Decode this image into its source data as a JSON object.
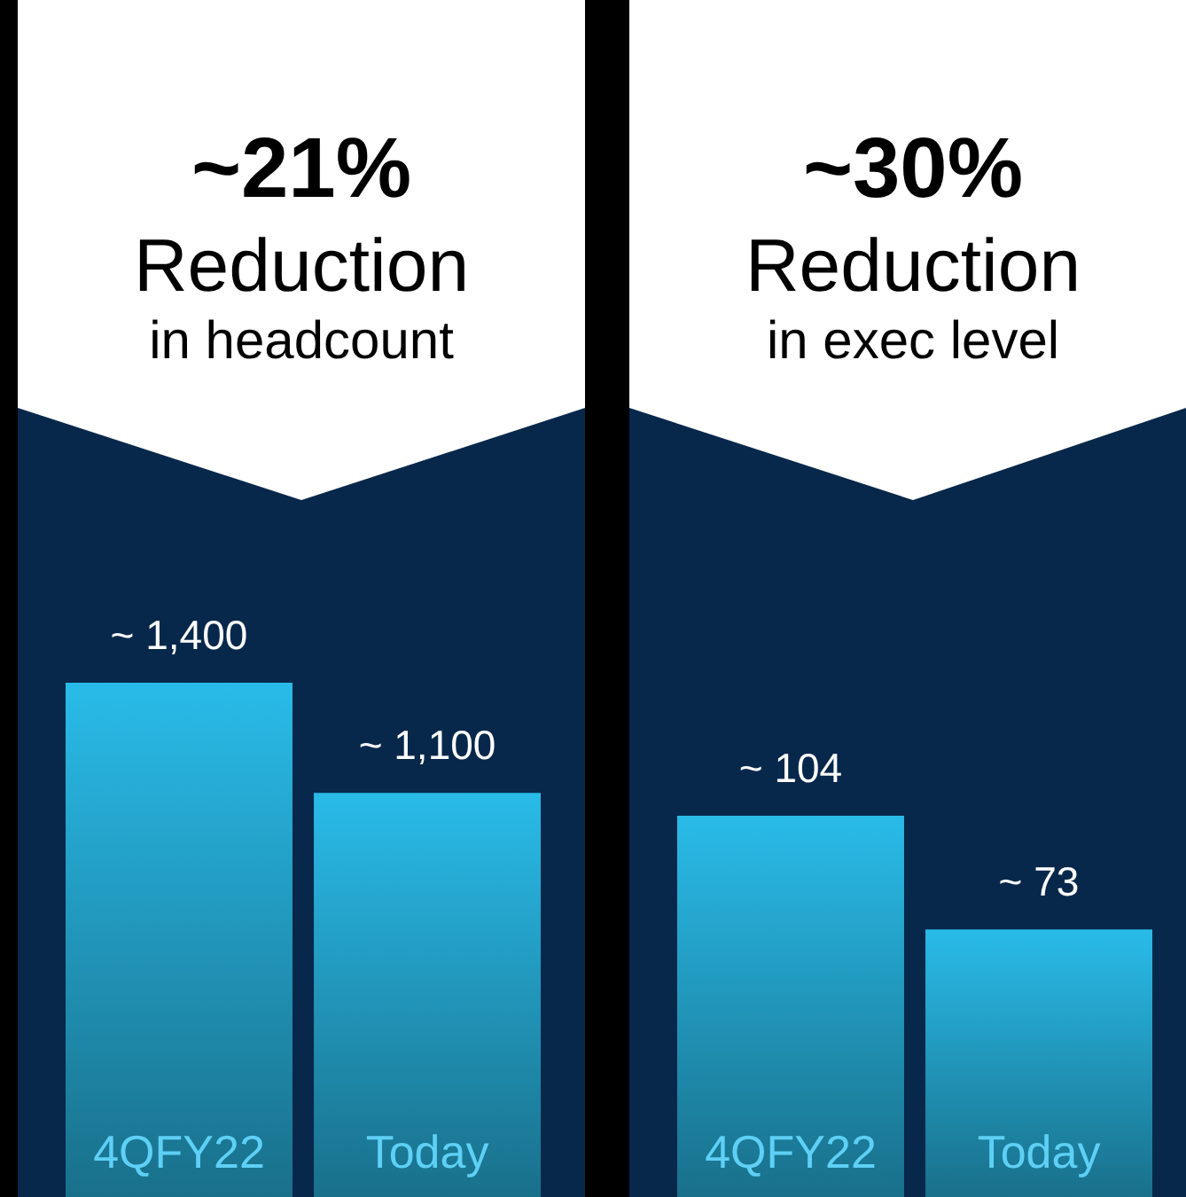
{
  "chart_data": [
    {
      "type": "bar",
      "title": "~21%",
      "subtitle": "Reduction",
      "annotations": [
        "in headcount"
      ],
      "categories": [
        "4QFY22",
        "Today"
      ],
      "values": [
        1400,
        1100
      ],
      "value_labels": [
        "~ 1,400",
        "~ 1,100"
      ],
      "color": "#29bbe8"
    },
    {
      "type": "bar",
      "title": "~30%",
      "subtitle": "Reduction",
      "annotations": [
        "in exec level"
      ],
      "categories": [
        "4QFY22",
        "Today"
      ],
      "values": [
        104,
        73
      ],
      "value_labels": [
        "~ 104",
        "~ 73"
      ],
      "color": "#29bbe8"
    }
  ]
}
